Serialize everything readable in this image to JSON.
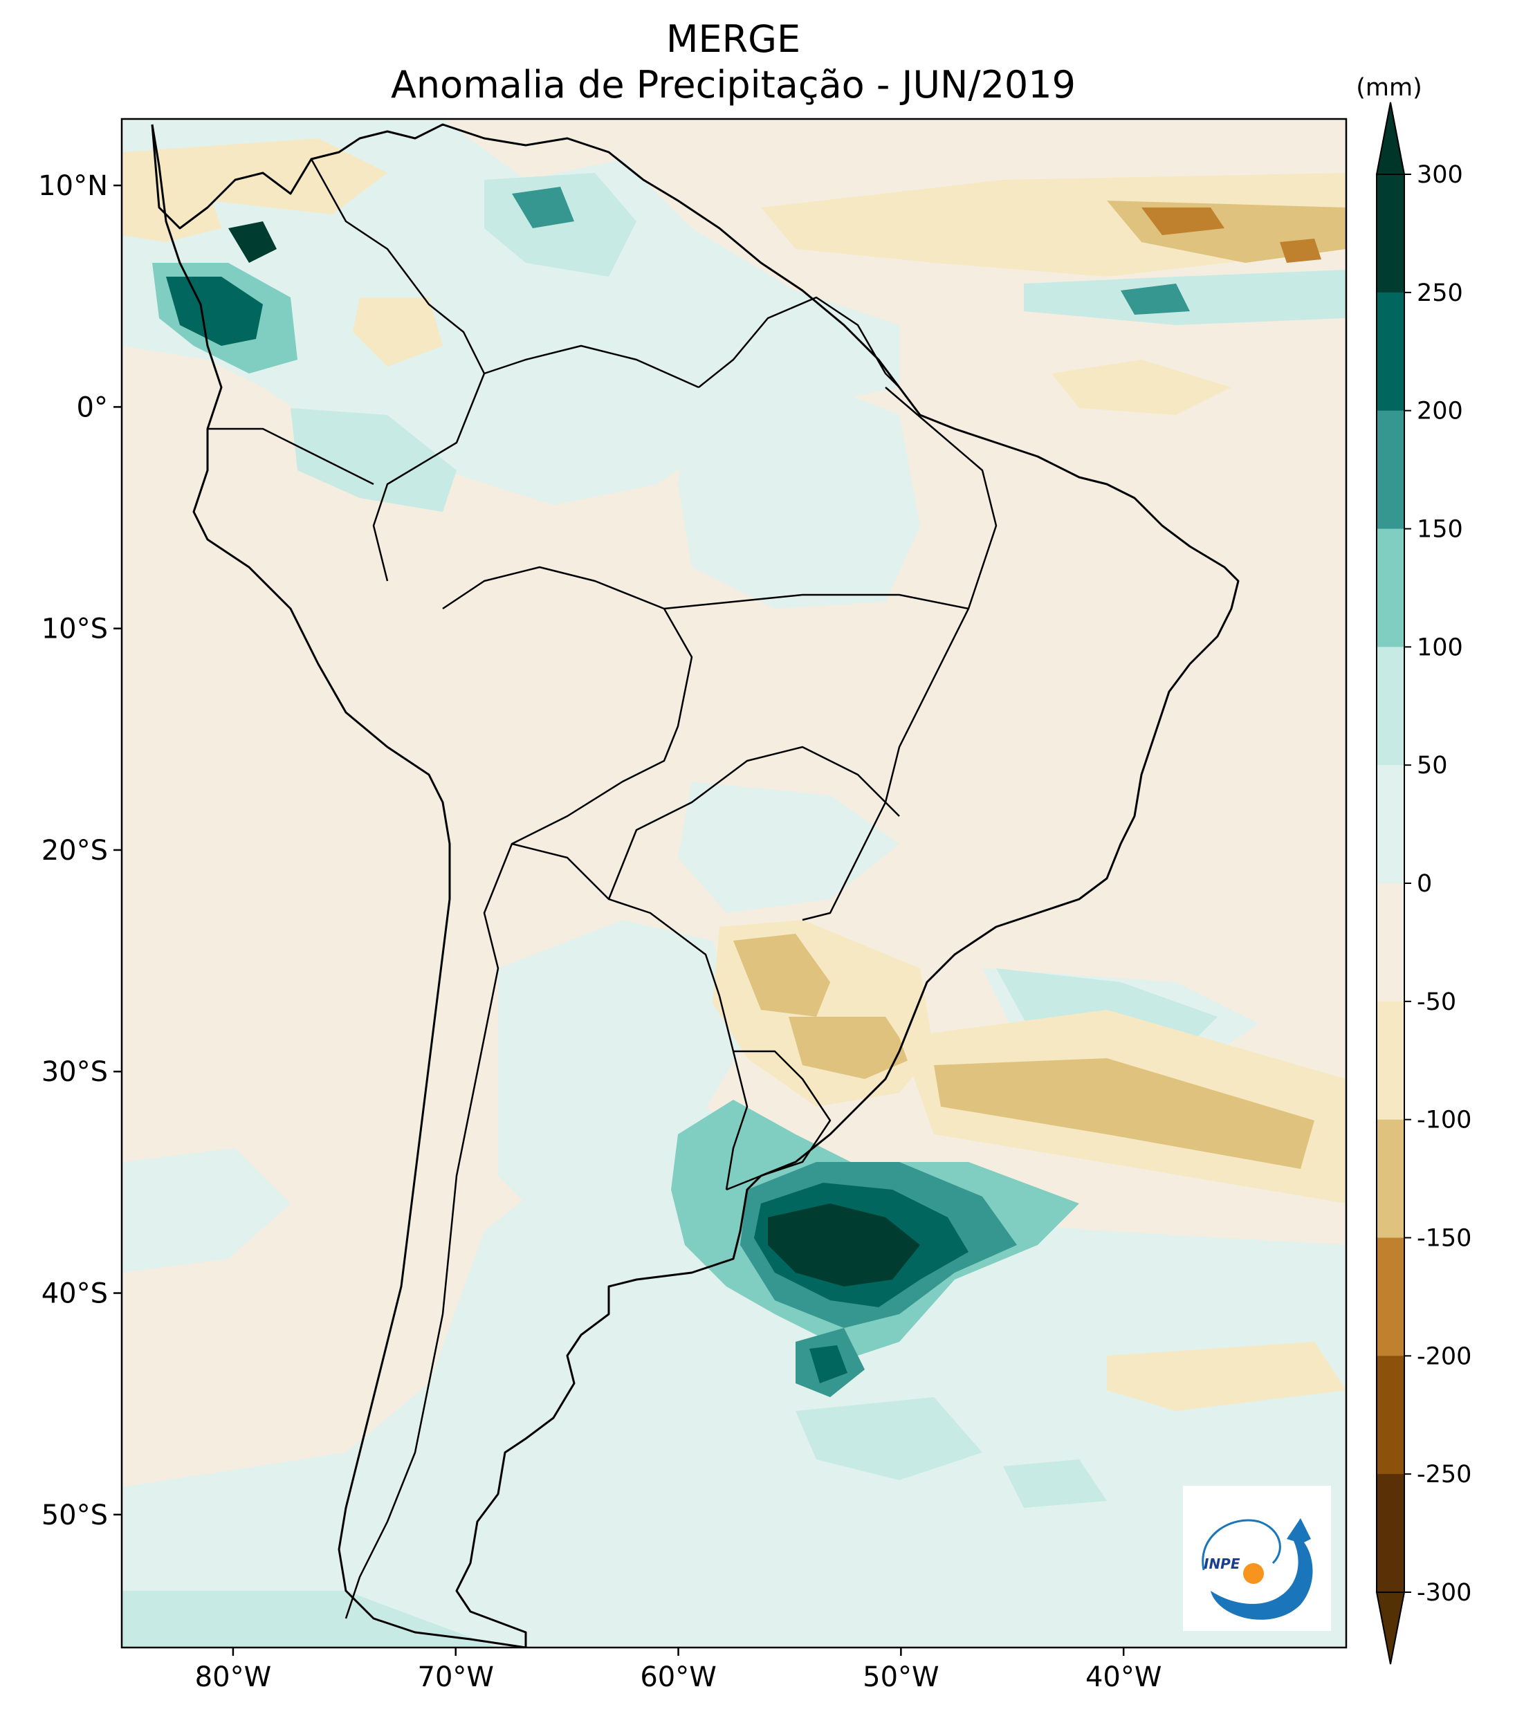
{
  "title": {
    "line1": "MERGE",
    "line2": "Anomalia de Precipitação - JUN/2019"
  },
  "map": {
    "region": "South America",
    "variable": "Anomalia de Precipitação",
    "lon_range": [
      -85,
      -30
    ],
    "lat_range": [
      -56,
      13
    ],
    "lat_ticks": [
      {
        "value": 10,
        "label": "10°N"
      },
      {
        "value": 0,
        "label": "0°"
      },
      {
        "value": -10,
        "label": "10°S"
      },
      {
        "value": -20,
        "label": "20°S"
      },
      {
        "value": -30,
        "label": "30°S"
      },
      {
        "value": -40,
        "label": "40°S"
      },
      {
        "value": -50,
        "label": "50°S"
      }
    ],
    "lon_ticks": [
      {
        "value": -80,
        "label": "80°W"
      },
      {
        "value": -70,
        "label": "70°W"
      },
      {
        "value": -60,
        "label": "60°W"
      },
      {
        "value": -50,
        "label": "50°W"
      },
      {
        "value": -40,
        "label": "40°W"
      }
    ]
  },
  "colorbar": {
    "unit": "(mm)",
    "levels": [
      {
        "value": 300,
        "label": "300"
      },
      {
        "value": 250,
        "label": "250"
      },
      {
        "value": 200,
        "label": "200"
      },
      {
        "value": 150,
        "label": "150"
      },
      {
        "value": 100,
        "label": "100"
      },
      {
        "value": 50,
        "label": "50"
      },
      {
        "value": 0,
        "label": "0"
      },
      {
        "value": -50,
        "label": "-50"
      },
      {
        "value": -100,
        "label": "-100"
      },
      {
        "value": -150,
        "label": "-150"
      },
      {
        "value": -200,
        "label": "-200"
      },
      {
        "value": -250,
        "label": "-250"
      },
      {
        "value": -300,
        "label": "-300"
      }
    ],
    "colors": [
      "#003d30",
      "#01665e",
      "#35978f",
      "#80cdc1",
      "#c7eae5",
      "#e0f1ee",
      "#f5eee0",
      "#f6e8c3",
      "#dfc27d",
      "#bf812d",
      "#8c510a",
      "#5a3106"
    ],
    "over_color": "#00352a",
    "under_color": "#543005"
  },
  "logo": {
    "text": "INPE"
  }
}
